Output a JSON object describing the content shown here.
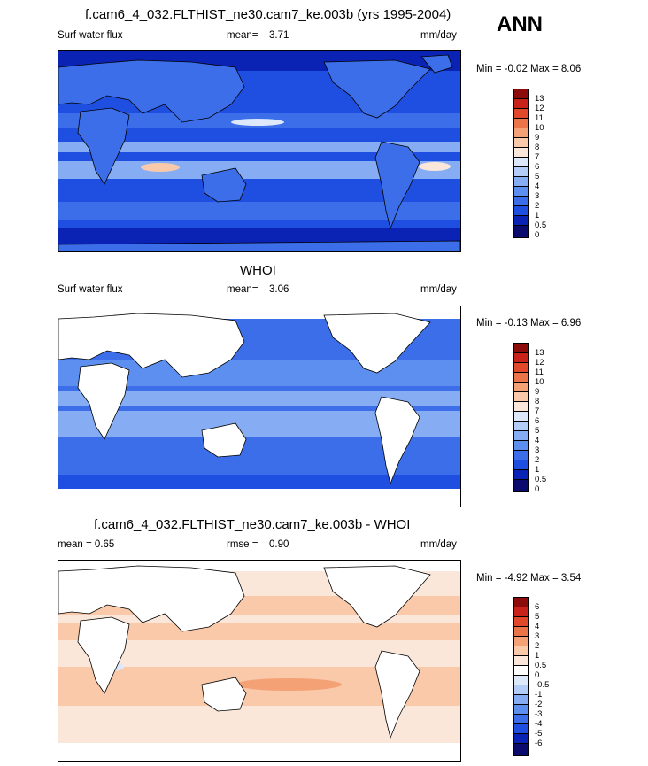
{
  "season": "ANN",
  "palettes": {
    "abs": [
      "#0b0b6e",
      "#0b23b4",
      "#1f4fe0",
      "#3b6ee8",
      "#5c8ff0",
      "#86adf4",
      "#b3cdf8",
      "#dde9fb",
      "#fbe7d9",
      "#f9c9aa",
      "#f4a176",
      "#ec7449",
      "#e2482a",
      "#c8221a",
      "#8c0c0c"
    ],
    "diff": [
      "#0b0b6e",
      "#0b23b4",
      "#1f4fe0",
      "#3b6ee8",
      "#5c8ff0",
      "#86adf4",
      "#b3cdf8",
      "#dde9fb",
      "#fbe7d9",
      "#f9c9aa",
      "#f4a176",
      "#ec7449",
      "#e2482a",
      "#c8221a",
      "#8c0c0c"
    ]
  },
  "panels": [
    {
      "title": "f.cam6_4_032.FLTHIST_ne30.cam7_ke.003b (yrs 1995-2004)",
      "left_label": "Surf water flux",
      "stat_label": "mean=",
      "stat_value": "3.71",
      "units": "mm/day",
      "minmax": "Min = -0.02 Max = 8.06",
      "colorbar_labels": [
        "13",
        "12",
        "11",
        "10",
        "9",
        "8",
        "7",
        "6",
        "5",
        "4",
        "3",
        "2",
        "1",
        "0.5",
        "0"
      ]
    },
    {
      "title": "WHOI",
      "left_label": "Surf water flux",
      "stat_label": "mean=",
      "stat_value": "3.06",
      "units": "mm/day",
      "minmax": "Min = -0.13 Max = 6.96",
      "colorbar_labels": [
        "13",
        "12",
        "11",
        "10",
        "9",
        "8",
        "7",
        "6",
        "5",
        "4",
        "3",
        "2",
        "1",
        "0.5",
        "0"
      ]
    },
    {
      "title": "f.cam6_4_032.FLTHIST_ne30.cam7_ke.003b - WHOI",
      "left_label": "mean = 0.65",
      "stat_label": "rmse =",
      "stat_value": "0.90",
      "units": "mm/day",
      "minmax": "Min = -4.92 Max = 3.54",
      "colorbar_labels": [
        "6",
        "5",
        "4",
        "3",
        "2",
        "1",
        "0.5",
        "0",
        "-0.5",
        "-1",
        "-2",
        "-3",
        "-4",
        "-5",
        "-6"
      ]
    }
  ],
  "chart_data": [
    {
      "type": "heatmap",
      "title": "f.cam6_4_032.FLTHIST_ne30.cam7_ke.003b (yrs 1995-2004)",
      "variable": "Surf water flux",
      "units": "mm/day",
      "mean": 3.71,
      "min": -0.02,
      "max": 8.06,
      "contour_levels": [
        0,
        0.5,
        1,
        2,
        3,
        4,
        5,
        6,
        7,
        8,
        9,
        10,
        11,
        12,
        13
      ]
    },
    {
      "type": "heatmap",
      "title": "WHOI",
      "variable": "Surf water flux",
      "units": "mm/day",
      "mean": 3.06,
      "min": -0.13,
      "max": 6.96,
      "contour_levels": [
        0,
        0.5,
        1,
        2,
        3,
        4,
        5,
        6,
        7,
        8,
        9,
        10,
        11,
        12,
        13
      ]
    },
    {
      "type": "heatmap",
      "title": "f.cam6_4_032.FLTHIST_ne30.cam7_ke.003b - WHOI",
      "units": "mm/day",
      "mean": 0.65,
      "rmse": 0.9,
      "min": -4.92,
      "max": 3.54,
      "contour_levels": [
        -6,
        -5,
        -4,
        -3,
        -2,
        -1,
        -0.5,
        0,
        0.5,
        1,
        2,
        3,
        4,
        5,
        6
      ]
    }
  ]
}
